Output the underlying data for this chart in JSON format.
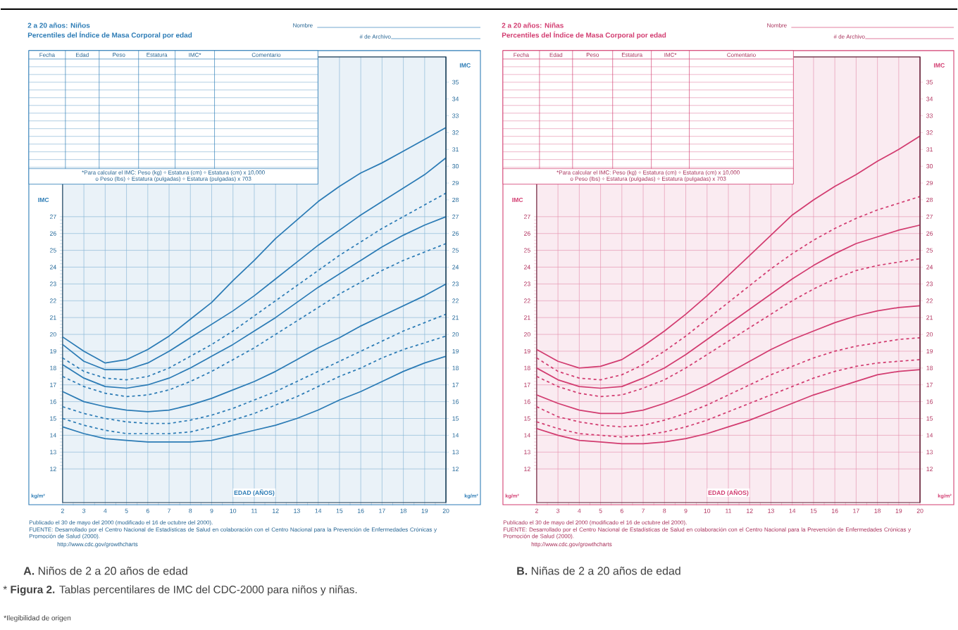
{
  "chart_data": [
    {
      "type": "line",
      "subtitle": "2 a 20 años: Niños",
      "title": "Percentiles del Índice de Masa Corporal por edad",
      "xlabel": "EDAD (AÑOS)",
      "ylabel": "IMC",
      "y2label": "IMC",
      "x": [
        2,
        3,
        4,
        5,
        6,
        7,
        8,
        9,
        10,
        11,
        12,
        13,
        14,
        15,
        16,
        17,
        18,
        19,
        20
      ],
      "xlim": [
        2,
        20
      ],
      "xticks": [
        2,
        3,
        4,
        5,
        6,
        7,
        8,
        9,
        10,
        11,
        12,
        13,
        14,
        15,
        16,
        17,
        18,
        19,
        20
      ],
      "ylim": [
        10,
        36.5
      ],
      "yticks": [
        12,
        13,
        14,
        15,
        16,
        17,
        18,
        19,
        20,
        21,
        22,
        23,
        24,
        25,
        26,
        27
      ],
      "y2lim": [
        10,
        36.5
      ],
      "y2ticks": [
        12,
        13,
        14,
        15,
        16,
        17,
        18,
        19,
        20,
        21,
        22,
        23,
        24,
        25,
        26,
        27,
        28,
        29,
        30,
        31,
        32,
        33,
        34,
        35
      ],
      "grid": true,
      "series": [
        {
          "color": "#2b7bb5",
          "line_style": "solid",
          "values": [
            19.85,
            19.0,
            18.3,
            18.5,
            19.1,
            19.9,
            20.9,
            21.9,
            23.2,
            24.4,
            25.7,
            26.8,
            27.9,
            28.8,
            29.6,
            30.2,
            30.9,
            31.6,
            32.3
          ]
        },
        {
          "color": "#2b7bb5",
          "line_style": "solid",
          "values": [
            19.4,
            18.4,
            17.9,
            17.9,
            18.3,
            19.0,
            19.8,
            20.6,
            21.4,
            22.3,
            23.3,
            24.3,
            25.3,
            26.2,
            27.1,
            27.9,
            28.7,
            29.5,
            30.5
          ]
        },
        {
          "color": "#2b7bb5",
          "line_style": "dashed",
          "values": [
            18.6,
            17.8,
            17.4,
            17.3,
            17.5,
            18.0,
            18.7,
            19.4,
            20.2,
            21.1,
            22.0,
            22.9,
            23.8,
            24.7,
            25.5,
            26.3,
            27.0,
            27.7,
            28.4
          ]
        },
        {
          "color": "#2b7bb5",
          "line_style": "solid",
          "values": [
            18.2,
            17.4,
            16.9,
            16.8,
            17.0,
            17.4,
            18.0,
            18.7,
            19.4,
            20.2,
            21.0,
            21.9,
            22.8,
            23.6,
            24.4,
            25.2,
            25.9,
            26.5,
            27.0
          ]
        },
        {
          "color": "#2b7bb5",
          "line_style": "dashed",
          "values": [
            17.5,
            16.9,
            16.5,
            16.3,
            16.4,
            16.7,
            17.2,
            17.8,
            18.5,
            19.2,
            20.0,
            20.8,
            21.6,
            22.4,
            23.1,
            23.8,
            24.4,
            24.9,
            25.4
          ]
        },
        {
          "color": "#2b7bb5",
          "line_style": "solid",
          "values": [
            16.6,
            16.0,
            15.7,
            15.5,
            15.4,
            15.5,
            15.8,
            16.2,
            16.7,
            17.2,
            17.8,
            18.5,
            19.2,
            19.8,
            20.5,
            21.1,
            21.7,
            22.3,
            23.0
          ]
        },
        {
          "color": "#2b7bb5",
          "line_style": "dashed",
          "values": [
            15.7,
            15.3,
            15.0,
            14.8,
            14.7,
            14.7,
            14.9,
            15.2,
            15.6,
            16.1,
            16.6,
            17.2,
            17.8,
            18.4,
            19.0,
            19.6,
            20.2,
            20.7,
            21.2
          ]
        },
        {
          "color": "#2b7bb5",
          "line_style": "dashed",
          "values": [
            15.0,
            14.6,
            14.3,
            14.1,
            14.1,
            14.1,
            14.2,
            14.5,
            14.9,
            15.3,
            15.8,
            16.3,
            16.9,
            17.5,
            18.0,
            18.6,
            19.1,
            19.5,
            19.9
          ]
        },
        {
          "color": "#2b7bb5",
          "line_style": "solid",
          "values": [
            14.5,
            14.1,
            13.8,
            13.7,
            13.6,
            13.6,
            13.6,
            13.7,
            14.0,
            14.3,
            14.6,
            15.0,
            15.5,
            16.1,
            16.6,
            17.2,
            17.8,
            18.3,
            18.7
          ]
        }
      ],
      "annotations": [
        "Nombre",
        "# de Archivo",
        "Fecha",
        "Edad",
        "Peso",
        "Estatura",
        "IMC*",
        "Comentario",
        "*Para calcular el IMC: Peso (kg) ÷ Estatura (cm) ÷ Estatura (cm) x 10,000",
        "o Peso (lbs) ÷ Estatura (pulgadas) ÷ Estatura (pulgadas) x 703",
        "kg/m²",
        "kg/m²",
        "Publicado el 30 de mayo del 2000 (modificado el 16 de octubre del 2000).",
        "FUENTE: Desarrollado por el Centro Nacional de Estadísticas de Salud en colaboración con el Centro Nacional para la Prevención de Enfermedades Crónicas y Promoción de Salud (2000).",
        "http://www.cdc.gov/growthcharts",
        "**A.** Niños de 2 a 20 años de edad"
      ]
    },
    {
      "type": "line",
      "subtitle": "2 a 20 años: Niñas",
      "title": "Percentiles del Índice de Masa Corporal por edad",
      "xlabel": "EDAD (AÑOS)",
      "ylabel": "IMC",
      "y2label": "IMC",
      "x": [
        2,
        3,
        4,
        5,
        6,
        7,
        8,
        9,
        10,
        11,
        12,
        13,
        14,
        15,
        16,
        17,
        18,
        19,
        20
      ],
      "xlim": [
        2,
        20
      ],
      "xticks": [
        2,
        3,
        4,
        5,
        6,
        7,
        8,
        9,
        10,
        11,
        12,
        13,
        14,
        15,
        16,
        17,
        18,
        19,
        20
      ],
      "ylim": [
        10,
        36.5
      ],
      "yticks": [
        12,
        13,
        14,
        15,
        16,
        17,
        18,
        19,
        20,
        21,
        22,
        23,
        24,
        25,
        26,
        27
      ],
      "y2lim": [
        10,
        36.5
      ],
      "y2ticks": [
        12,
        13,
        14,
        15,
        16,
        17,
        18,
        19,
        20,
        21,
        22,
        23,
        24,
        25,
        26,
        27,
        28,
        29,
        30,
        31,
        32,
        33,
        34,
        35
      ],
      "grid": true,
      "series": [
        {
          "color": "#d23c70",
          "line_style": "solid",
          "values": [
            19.1,
            18.4,
            18.0,
            18.1,
            18.5,
            19.3,
            20.2,
            21.2,
            22.3,
            23.5,
            24.7,
            25.9,
            27.1,
            28.0,
            28.8,
            29.5,
            30.3,
            31.0,
            31.8
          ]
        },
        {
          "color": "#d23c70",
          "line_style": "dashed",
          "values": [
            18.6,
            17.8,
            17.4,
            17.3,
            17.6,
            18.2,
            19.0,
            19.9,
            20.9,
            21.9,
            22.9,
            23.9,
            24.8,
            25.6,
            26.3,
            26.9,
            27.4,
            27.8,
            28.2
          ]
        },
        {
          "color": "#d23c70",
          "line_style": "solid",
          "values": [
            18.0,
            17.3,
            16.9,
            16.8,
            16.9,
            17.4,
            18.0,
            18.8,
            19.7,
            20.6,
            21.5,
            22.4,
            23.3,
            24.1,
            24.8,
            25.4,
            25.8,
            26.2,
            26.5
          ]
        },
        {
          "color": "#d23c70",
          "line_style": "dashed",
          "values": [
            17.5,
            16.9,
            16.5,
            16.3,
            16.4,
            16.8,
            17.3,
            18.0,
            18.8,
            19.6,
            20.4,
            21.2,
            22.0,
            22.7,
            23.3,
            23.8,
            24.1,
            24.3,
            24.5
          ]
        },
        {
          "color": "#d23c70",
          "line_style": "solid",
          "values": [
            16.4,
            15.9,
            15.5,
            15.3,
            15.3,
            15.5,
            15.9,
            16.4,
            17.0,
            17.7,
            18.4,
            19.1,
            19.7,
            20.2,
            20.7,
            21.1,
            21.4,
            21.6,
            21.7
          ]
        },
        {
          "color": "#d23c70",
          "line_style": "dashed",
          "values": [
            15.7,
            15.1,
            14.8,
            14.6,
            14.5,
            14.6,
            14.9,
            15.3,
            15.8,
            16.4,
            17.0,
            17.6,
            18.1,
            18.6,
            19.0,
            19.3,
            19.5,
            19.7,
            19.8
          ]
        },
        {
          "color": "#d23c70",
          "line_style": "dashed",
          "values": [
            14.8,
            14.4,
            14.1,
            14.0,
            13.9,
            14.0,
            14.2,
            14.5,
            14.9,
            15.4,
            15.9,
            16.4,
            16.9,
            17.4,
            17.8,
            18.1,
            18.3,
            18.4,
            18.5
          ]
        },
        {
          "color": "#d23c70",
          "line_style": "solid",
          "values": [
            14.4,
            14.0,
            13.7,
            13.6,
            13.5,
            13.5,
            13.6,
            13.8,
            14.1,
            14.5,
            14.9,
            15.4,
            15.9,
            16.4,
            16.8,
            17.2,
            17.6,
            17.8,
            17.9
          ]
        }
      ],
      "annotations": [
        "Nombre",
        "# de Archivo",
        "Fecha",
        "Edad",
        "Peso",
        "Estatura",
        "IMC*",
        "Comentario",
        "*Para calcular el IMC: Peso (kg) ÷ Estatura (cm) ÷ Estatura (cm) x 10,000",
        "o Peso (lbs) ÷ Estatura (pulgadas) ÷ Estatura (pulgadas) x 703",
        "kg/m²",
        "kg/m²",
        "Publicado el 30 de mayo del 2000 (modificado el 16 de octubre del 2000).",
        "FUENTE: Desarrollado por el Centro Nacional de Estadísticas de Salud en colaboración con el Centro Nacional para la Prevención de Enfermedades Crónicas y Promoción de Salud (2000).",
        "http://www.cdc.gov/growthcharts",
        "**B.** Niñas de 2 a 20 años de edad",
        "* **Figura 2.** Tablas percentilares de IMC del CDC-2000 para niños y niñas.",
        "*Ilegibilidad de origen"
      ]
    }
  ]
}
